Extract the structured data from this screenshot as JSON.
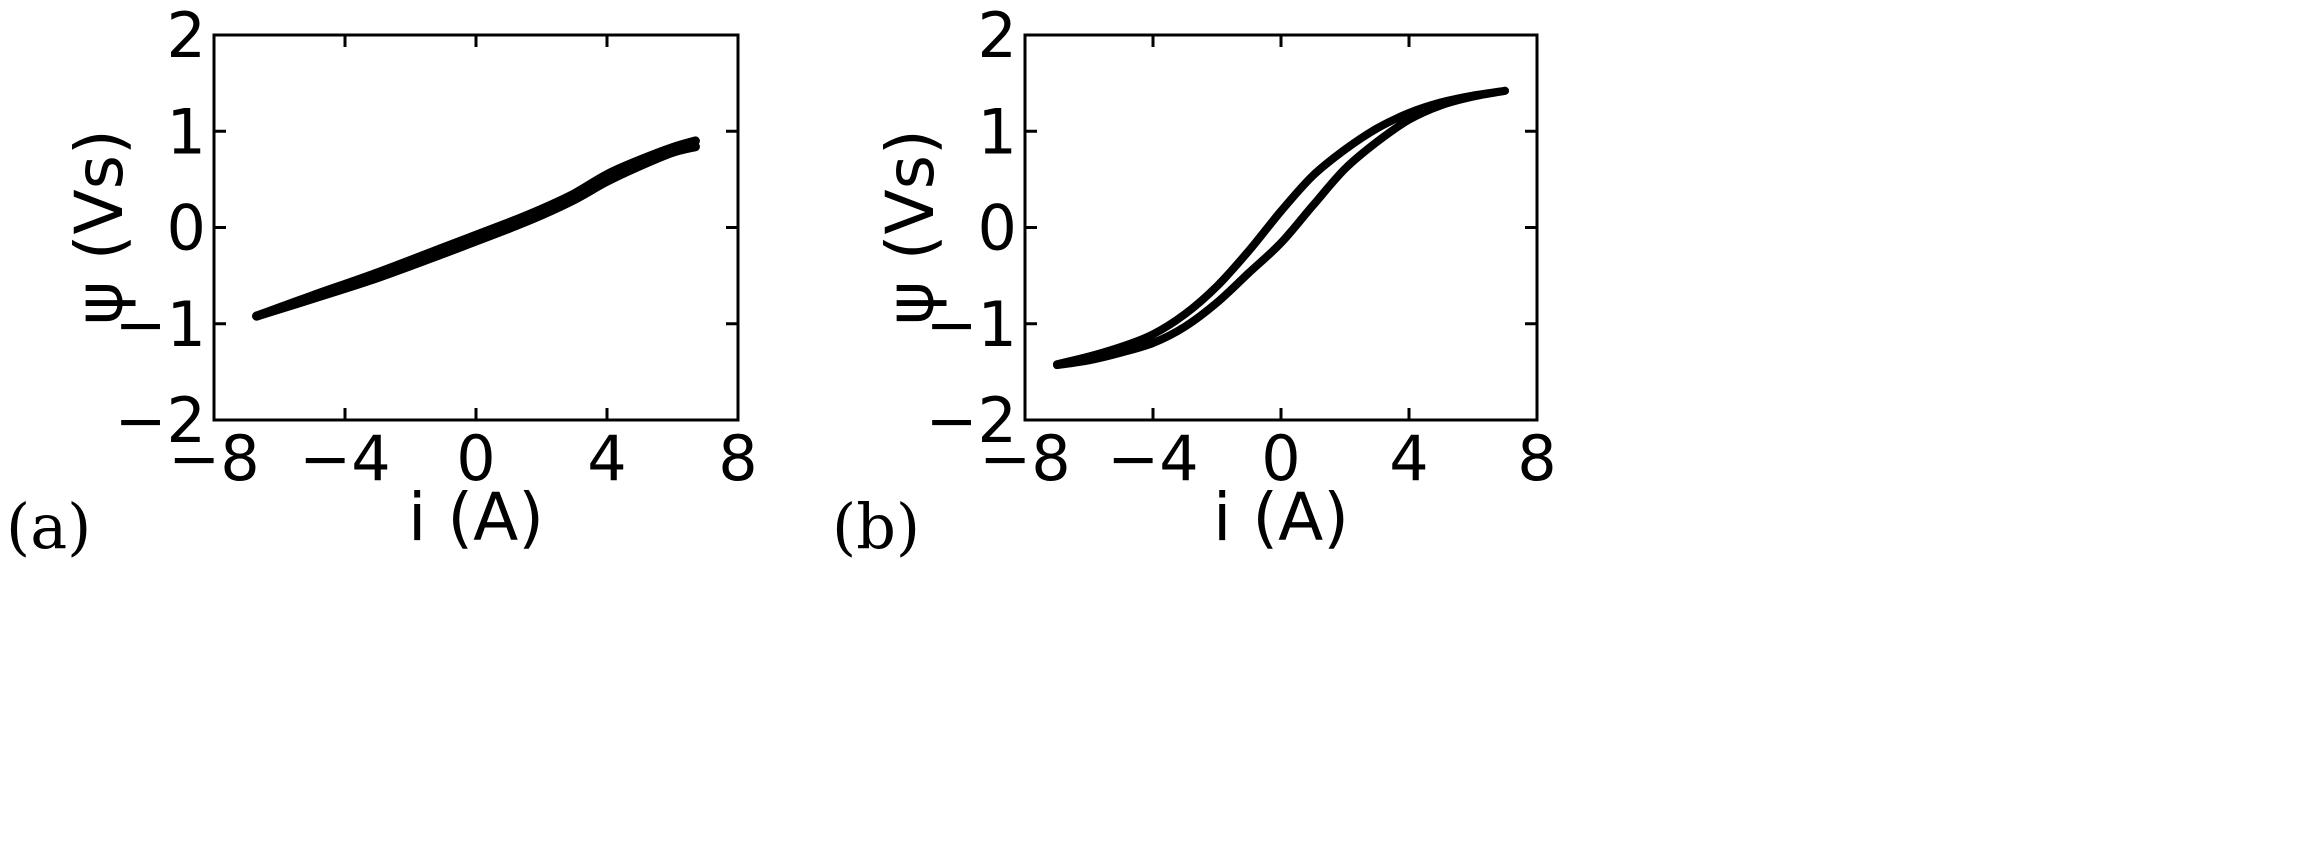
{
  "chart_data": [
    {
      "type": "line",
      "panel_label": "(a)",
      "xlabel": "i (A)",
      "ylabel": "ψ (Vs)",
      "xlim": [
        -8,
        8
      ],
      "ylim": [
        -2,
        2
      ],
      "xticks": [
        "−8",
        "−4",
        "0",
        "4",
        "8"
      ],
      "yticks": [
        "2",
        "1",
        "0",
        "−1",
        "−2"
      ],
      "grid": false,
      "color": "#000000",
      "series": [
        {
          "x": [
            -6.7,
            -5,
            -3,
            -1,
            0,
            1,
            2,
            3,
            4,
            5,
            6,
            6.7
          ],
          "y": [
            -0.92,
            -0.74,
            -0.52,
            -0.27,
            -0.14,
            -0.01,
            0.13,
            0.29,
            0.48,
            0.64,
            0.78,
            0.84
          ]
        },
        {
          "x": [
            -6.7,
            -5,
            -3,
            -1,
            0,
            1,
            2,
            3,
            4,
            5,
            6,
            6.7
          ],
          "y": [
            -0.92,
            -0.71,
            -0.47,
            -0.21,
            -0.08,
            0.05,
            0.19,
            0.35,
            0.55,
            0.7,
            0.83,
            0.9
          ]
        }
      ]
    },
    {
      "type": "line",
      "panel_label": "(b)",
      "xlabel": "i (A)",
      "ylabel": "ψ (Vs)",
      "xlim": [
        -8,
        8
      ],
      "ylim": [
        -2,
        2
      ],
      "xticks": [
        "−8",
        "−4",
        "0",
        "4",
        "8"
      ],
      "yticks": [
        "2",
        "1",
        "0",
        "−1",
        "−2"
      ],
      "grid": false,
      "color": "#000000",
      "series": [
        {
          "x": [
            -7,
            -6,
            -5,
            -4,
            -3,
            -2,
            -1,
            0,
            1,
            2,
            3,
            4,
            5,
            6,
            7
          ],
          "y": [
            -1.43,
            -1.38,
            -1.3,
            -1.2,
            -1.03,
            -0.78,
            -0.47,
            -0.16,
            0.23,
            0.61,
            0.89,
            1.12,
            1.27,
            1.36,
            1.42
          ]
        },
        {
          "x": [
            -7,
            -6,
            -5,
            -4,
            -3,
            -2,
            -1,
            0,
            1,
            2,
            3,
            4,
            5,
            6,
            7
          ],
          "y": [
            -1.42,
            -1.34,
            -1.24,
            -1.11,
            -0.9,
            -0.61,
            -0.24,
            0.17,
            0.54,
            0.81,
            1.03,
            1.19,
            1.3,
            1.37,
            1.42
          ]
        }
      ]
    }
  ]
}
